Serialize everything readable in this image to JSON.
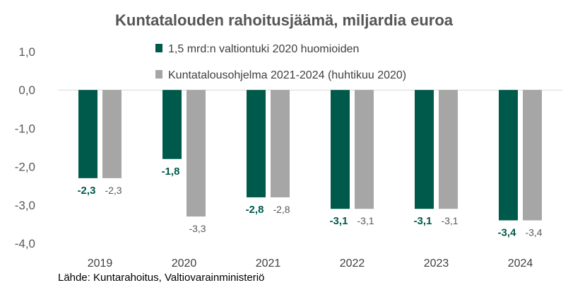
{
  "chart_data": {
    "type": "bar",
    "title": "Kuntatalouden rahoitusjäämä, miljardia euroa",
    "categories": [
      "2019",
      "2020",
      "2021",
      "2022",
      "2023",
      "2024"
    ],
    "series": [
      {
        "name": "1,5 mrd:n valtiontuki 2020 huomioiden",
        "color": "#005a4b",
        "values": [
          -2.3,
          -1.8,
          -2.8,
          -3.1,
          -3.1,
          -3.4
        ],
        "labels": [
          "-2,3",
          "-1,8",
          "-2,8",
          "-3,1",
          "-3,1",
          "-3,4"
        ]
      },
      {
        "name": "Kuntatalousohjelma 2021-2024 (huhtikuu 2020)",
        "color": "#a6a6a6",
        "values": [
          -2.3,
          -3.3,
          -2.8,
          -3.1,
          -3.1,
          -3.4
        ],
        "labels": [
          "-2,3",
          "-3,3",
          "-2,8",
          "-3,1",
          "-3,1",
          "-3,4"
        ]
      }
    ],
    "yticks": [
      "1,0",
      "0,0",
      "-1,0",
      "-2,0",
      "-3,0",
      "-4,0"
    ],
    "ylim": [
      -4.0,
      1.0
    ],
    "grid": false,
    "legend_position": "top"
  },
  "source": "Lähde: Kuntarahoitus, Valtiovarainministeriö"
}
